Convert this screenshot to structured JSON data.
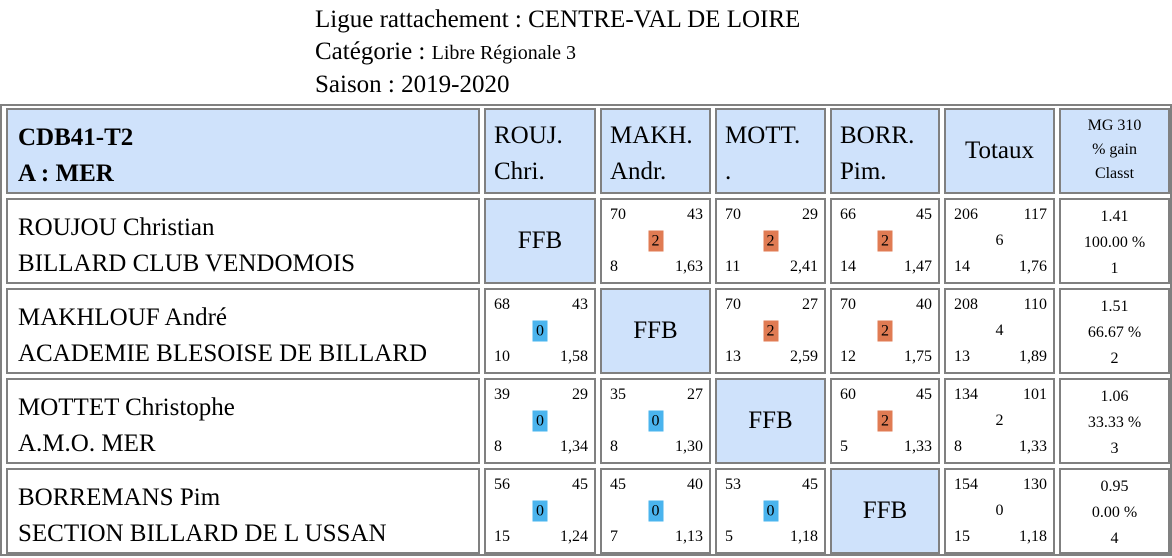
{
  "header": {
    "ligue_label": "Ligue rattachement : ",
    "ligue_value": "CENTRE-VAL DE LOIRE",
    "categorie_label": "Catégorie : ",
    "categorie_value": "Libre Régionale 3",
    "saison_label": "Saison : ",
    "saison_value": "2019-2020"
  },
  "table": {
    "title_line1": "CDB41-T2",
    "title_line2": "A : MER",
    "columns": [
      {
        "line1": "ROUJ.",
        "line2": "Chri."
      },
      {
        "line1": "MAKH.",
        "line2": "Andr."
      },
      {
        "line1": "MOTT.",
        "line2": "."
      },
      {
        "line1": "BORR.",
        "line2": "Pim."
      }
    ],
    "totals_label": "Totaux",
    "mg_label": [
      "MG 310",
      "% gain",
      "Classt"
    ],
    "self_label": "FFB",
    "rows": [
      {
        "name": "ROUJOU Christian",
        "club": "BILLARD CLUB VENDOMOIS",
        "cells": [
          null,
          {
            "pts": "70",
            "opp": "43",
            "badge": "2",
            "result": "win",
            "reprises": "8",
            "avg": "1,63"
          },
          {
            "pts": "70",
            "opp": "29",
            "badge": "2",
            "result": "win",
            "reprises": "11",
            "avg": "2,41"
          },
          {
            "pts": "66",
            "opp": "45",
            "badge": "2",
            "result": "win",
            "reprises": "14",
            "avg": "1,47"
          }
        ],
        "totals": {
          "pts": "206",
          "opp": "117",
          "mp": "6",
          "reprises": "14",
          "avg": "1,76"
        },
        "mg": {
          "avg": "1.41",
          "pct": "100.00 %",
          "rank": "1"
        }
      },
      {
        "name": "MAKHLOUF André",
        "club": "ACADEMIE BLESOISE DE BILLARD",
        "cells": [
          {
            "pts": "68",
            "opp": "43",
            "badge": "0",
            "result": "loss",
            "reprises": "10",
            "avg": "1,58"
          },
          null,
          {
            "pts": "70",
            "opp": "27",
            "badge": "2",
            "result": "win",
            "reprises": "13",
            "avg": "2,59"
          },
          {
            "pts": "70",
            "opp": "40",
            "badge": "2",
            "result": "win",
            "reprises": "12",
            "avg": "1,75"
          }
        ],
        "totals": {
          "pts": "208",
          "opp": "110",
          "mp": "4",
          "reprises": "13",
          "avg": "1,89"
        },
        "mg": {
          "avg": "1.51",
          "pct": "66.67 %",
          "rank": "2"
        }
      },
      {
        "name": "MOTTET Christophe",
        "club": "A.M.O. MER",
        "cells": [
          {
            "pts": "39",
            "opp": "29",
            "badge": "0",
            "result": "loss",
            "reprises": "8",
            "avg": "1,34"
          },
          {
            "pts": "35",
            "opp": "27",
            "badge": "0",
            "result": "loss",
            "reprises": "8",
            "avg": "1,30"
          },
          null,
          {
            "pts": "60",
            "opp": "45",
            "badge": "2",
            "result": "win",
            "reprises": "5",
            "avg": "1,33"
          }
        ],
        "totals": {
          "pts": "134",
          "opp": "101",
          "mp": "2",
          "reprises": "8",
          "avg": "1,33"
        },
        "mg": {
          "avg": "1.06",
          "pct": "33.33 %",
          "rank": "3"
        }
      },
      {
        "name": "BORREMANS Pim",
        "club": "SECTION BILLARD DE L USSAN",
        "cells": [
          {
            "pts": "56",
            "opp": "45",
            "badge": "0",
            "result": "loss",
            "reprises": "15",
            "avg": "1,24"
          },
          {
            "pts": "45",
            "opp": "40",
            "badge": "0",
            "result": "loss",
            "reprises": "7",
            "avg": "1,13"
          },
          {
            "pts": "53",
            "opp": "45",
            "badge": "0",
            "result": "loss",
            "reprises": "5",
            "avg": "1,18"
          },
          null
        ],
        "totals": {
          "pts": "154",
          "opp": "130",
          "mp": "0",
          "reprises": "15",
          "avg": "1,18"
        },
        "mg": {
          "avg": "0.95",
          "pct": "0.00 %",
          "rank": "4"
        }
      }
    ]
  }
}
